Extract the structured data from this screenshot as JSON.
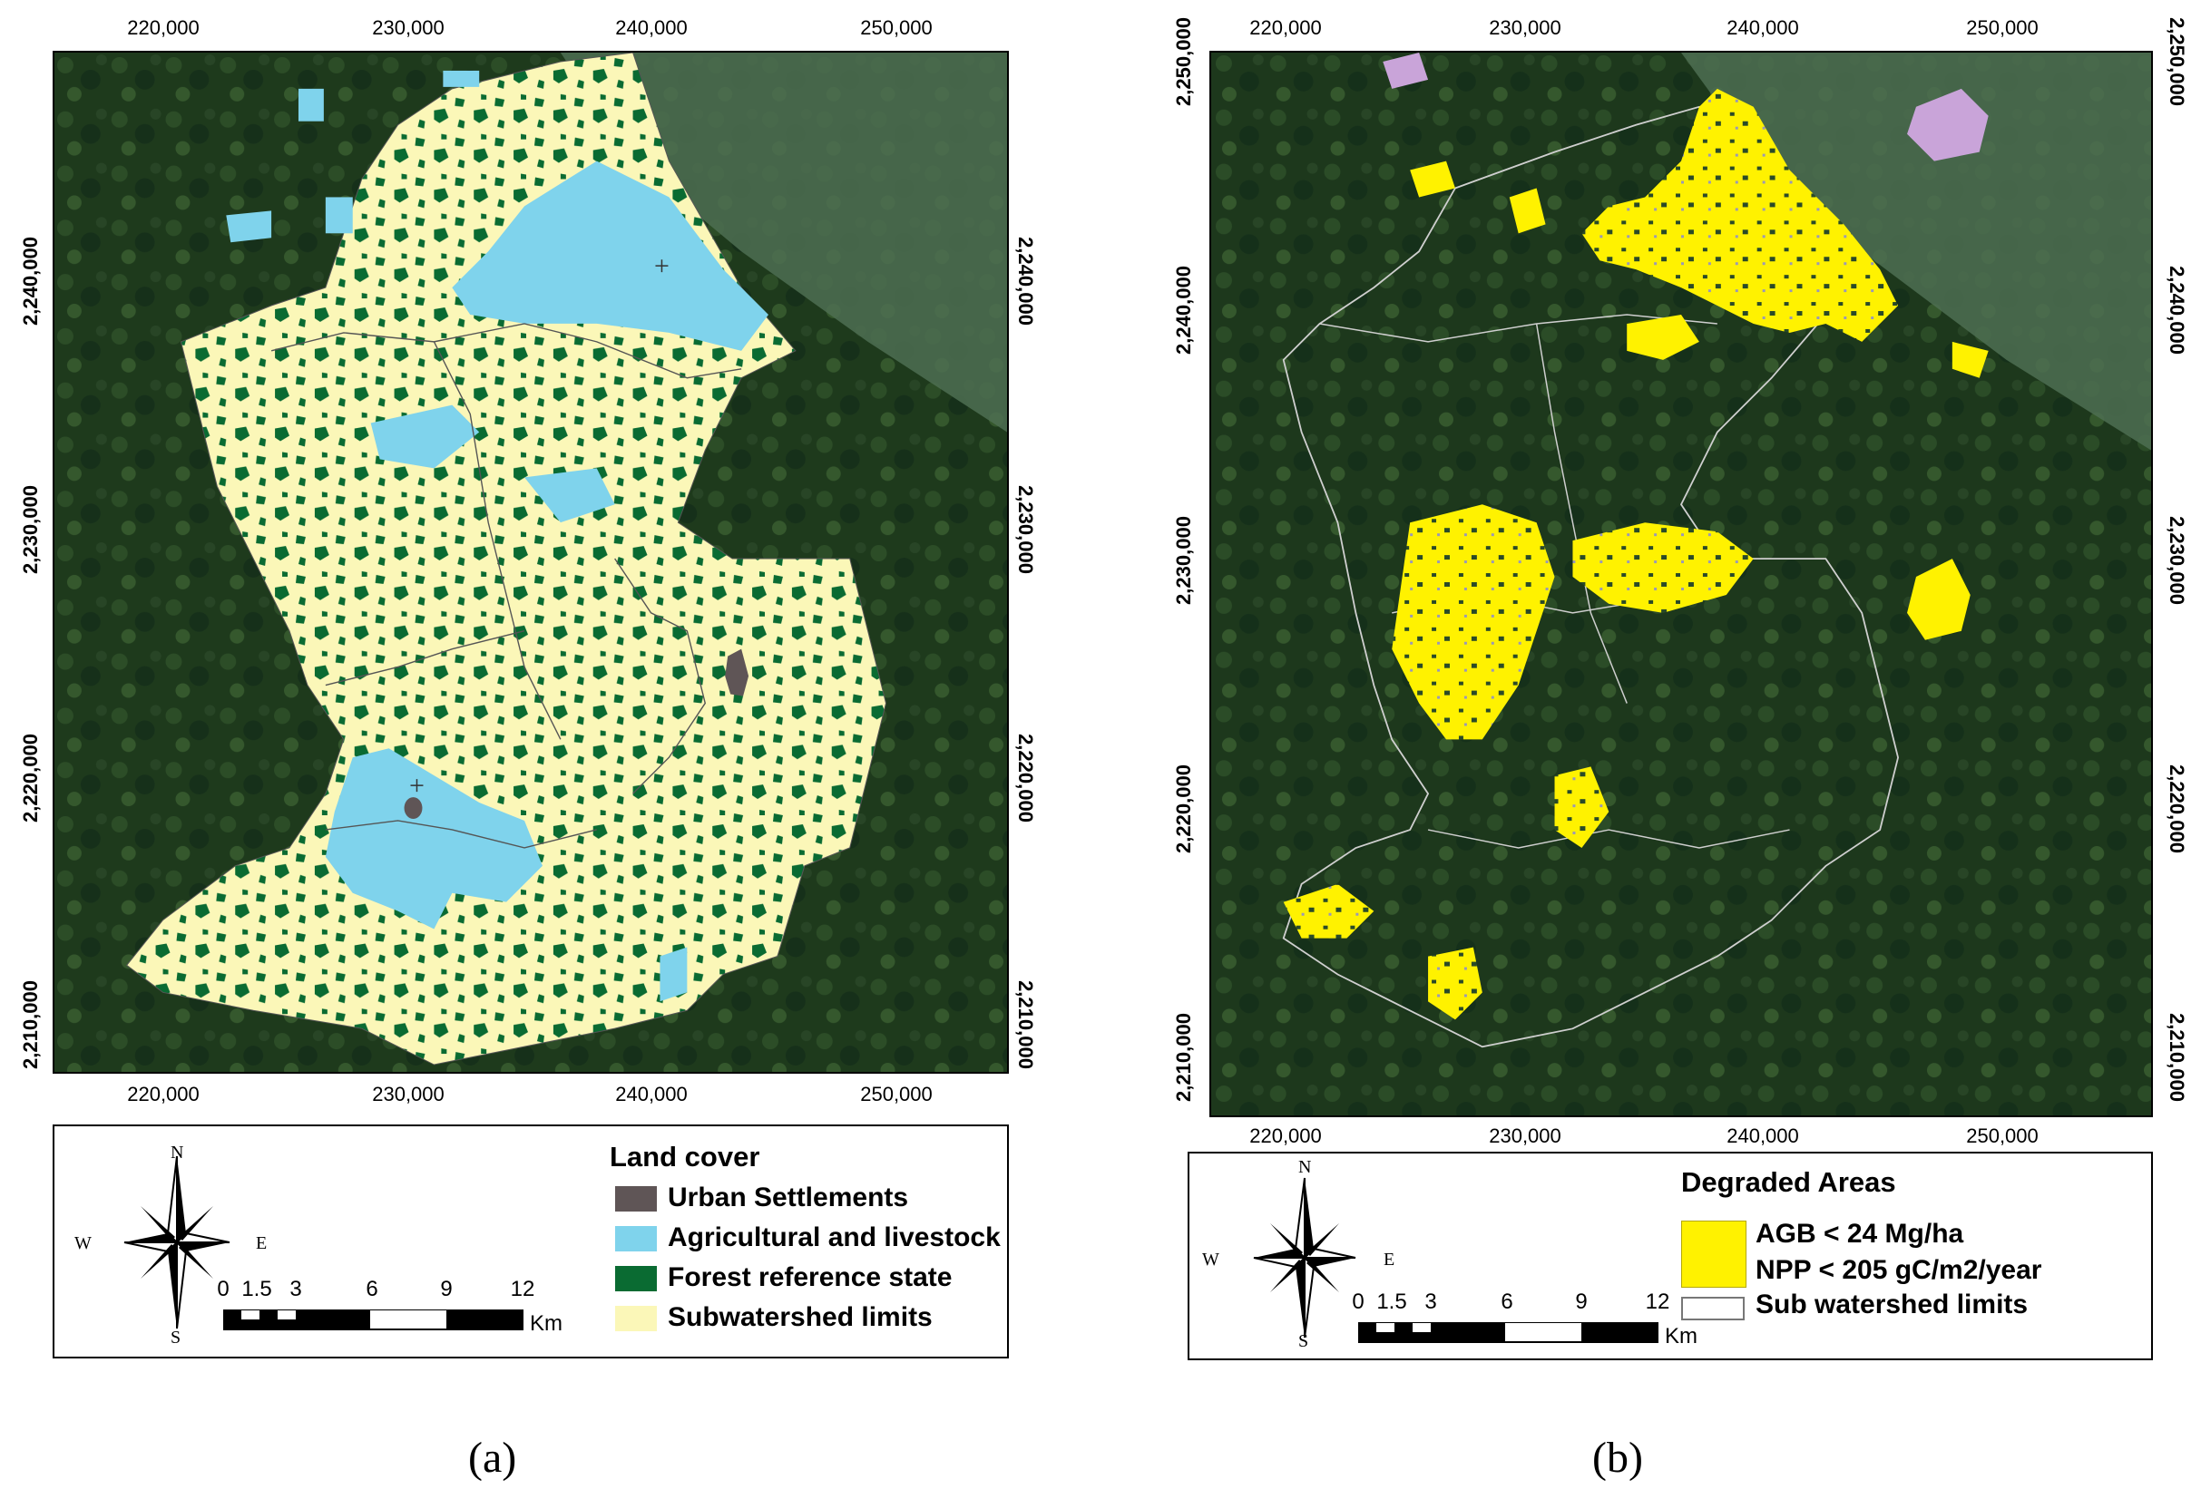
{
  "panel_a": {
    "label": "(a)",
    "x_ticks": [
      "220,000",
      "230,000",
      "240,000",
      "250,000"
    ],
    "y_ticks": [
      "2,240,000",
      "2,230,000",
      "2,220,000",
      "2,210,000"
    ],
    "legend": {
      "title": "Land cover",
      "items": [
        {
          "label": "Urban Settlements",
          "color": "#5f5556"
        },
        {
          "label": "Agricultural and livestock",
          "color": "#7fd3ec"
        },
        {
          "label": "Forest reference state",
          "color": "#0a6b32"
        },
        {
          "label": "Subwatershed limits",
          "color": "#fbf7b8"
        }
      ]
    },
    "compass": {
      "n": "N",
      "s": "S",
      "e": "E",
      "w": "W"
    },
    "scale": {
      "labels": [
        "0",
        "1.5",
        "3",
        "6",
        "9",
        "12"
      ],
      "unit": "Km"
    }
  },
  "panel_b": {
    "label": "(b)",
    "x_ticks_top": [
      "220,000",
      "230,000",
      "240,000",
      "250,000"
    ],
    "x_ticks_bottom": [
      "220,000",
      "230,000",
      "240,000",
      "250,000"
    ],
    "y_ticks": [
      "2,250,000",
      "2,240,000",
      "2,230,000",
      "2,220,000",
      "2,210,000"
    ],
    "legend": {
      "title": "Degraded Areas",
      "items": [
        {
          "label": "AGB < 24 Mg/ha",
          "color": "#fff200"
        },
        {
          "label": "NPP < 205 gC/m2/year",
          "color": "#fff200"
        },
        {
          "label": "Sub watershed limits",
          "color": "#ffffff"
        }
      ]
    },
    "compass": {
      "n": "N",
      "s": "S",
      "e": "E",
      "w": "W"
    },
    "scale": {
      "labels": [
        "0",
        "1.5",
        "3",
        "6",
        "9",
        "12"
      ],
      "unit": "Km"
    }
  }
}
